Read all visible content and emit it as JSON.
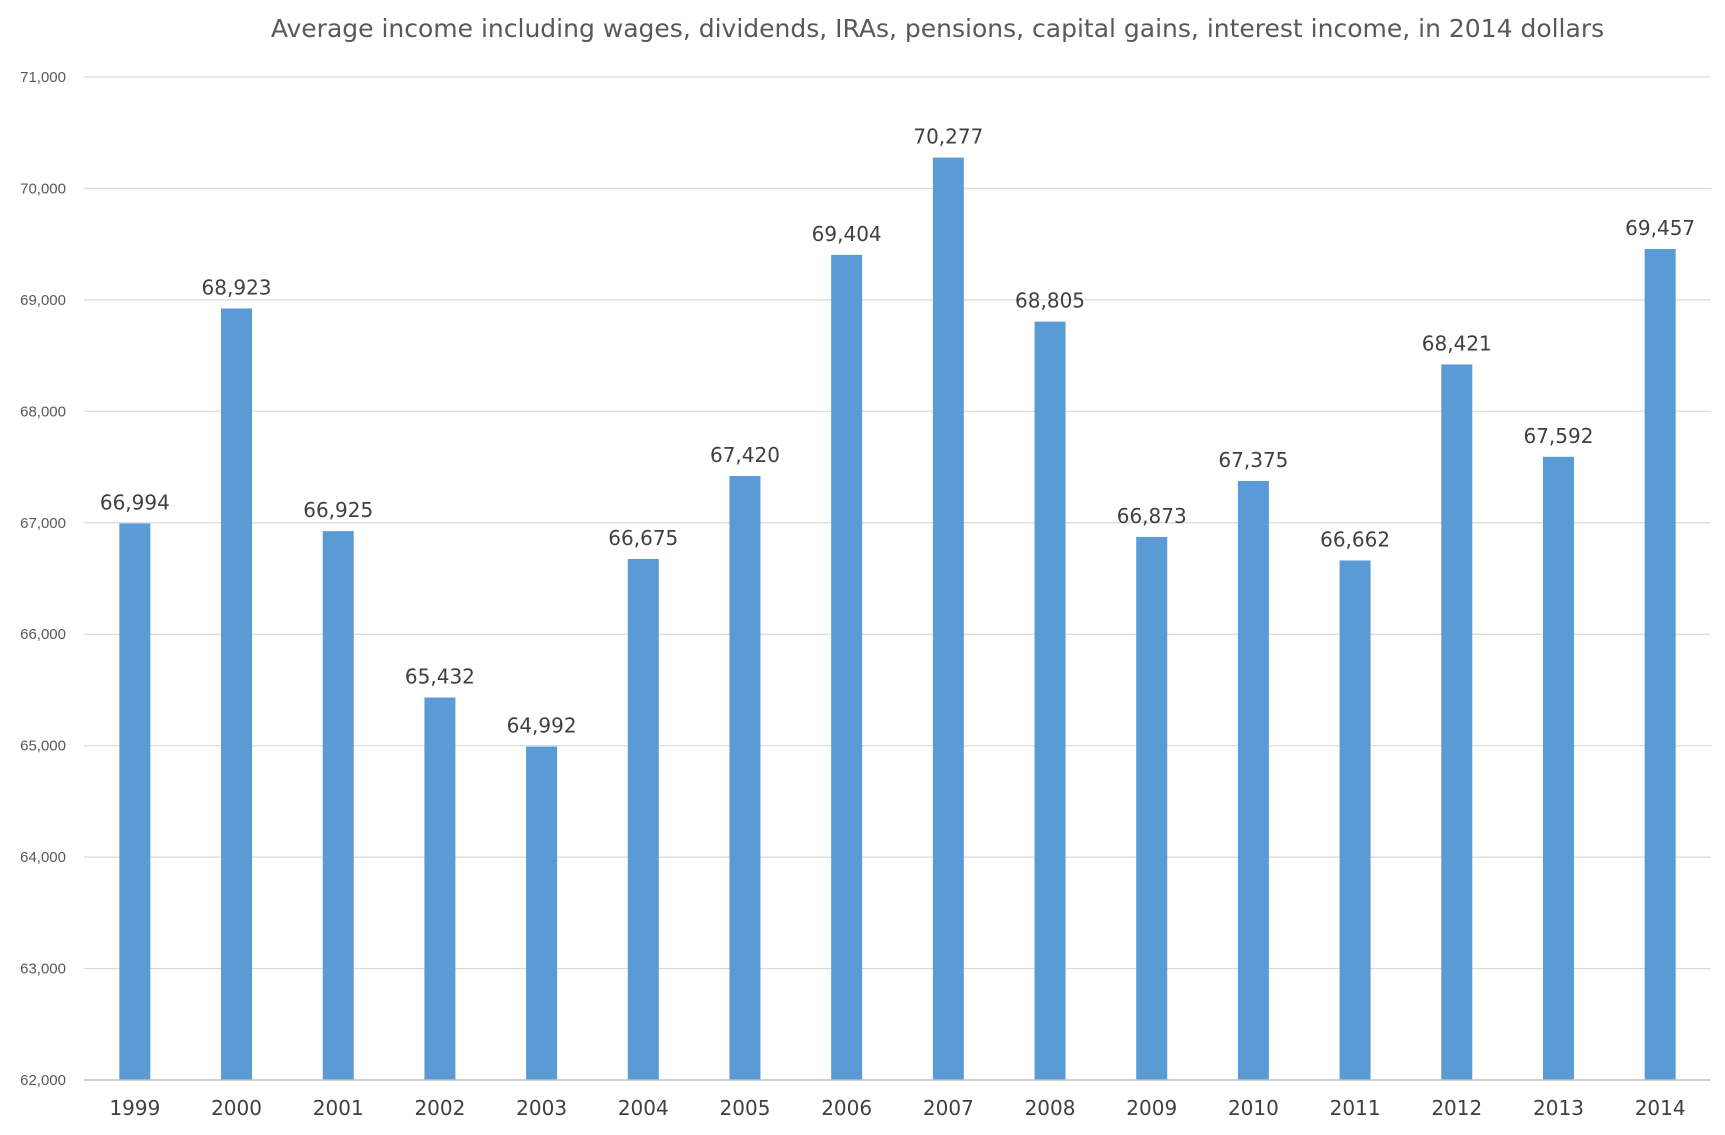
{
  "chart_data": {
    "type": "bar",
    "title": "Average income including wages, dividends, IRAs, pensions, capital gains, interest income, in 2014 dollars",
    "xlabel": "",
    "ylabel": "",
    "categories": [
      "1999",
      "2000",
      "2001",
      "2002",
      "2003",
      "2004",
      "2005",
      "2006",
      "2007",
      "2008",
      "2009",
      "2010",
      "2011",
      "2012",
      "2013",
      "2014"
    ],
    "values": [
      66994,
      68923,
      66925,
      65432,
      64992,
      66675,
      67420,
      69404,
      70277,
      68805,
      66873,
      67375,
      66662,
      68421,
      67592,
      69457
    ],
    "value_labels": [
      "66,994",
      "68,923",
      "66,925",
      "65,432",
      "64,992",
      "66,675",
      "67,420",
      "69,404",
      "70,277",
      "68,805",
      "66,873",
      "67,375",
      "66,662",
      "68,421",
      "67,592",
      "69,457"
    ],
    "ylim": [
      62000,
      71000
    ],
    "y_ticks": [
      62000,
      63000,
      64000,
      65000,
      66000,
      67000,
      68000,
      69000,
      70000,
      71000
    ],
    "y_tick_labels": [
      "62,000",
      "63,000",
      "64,000",
      "65,000",
      "66,000",
      "67,000",
      "68,000",
      "69,000",
      "70,000",
      "71,000"
    ],
    "grid": true,
    "legend": "none",
    "colors": {
      "bar": "#5b9bd5",
      "grid": "#d9d9d9",
      "axis": "#bfbfbf"
    }
  }
}
